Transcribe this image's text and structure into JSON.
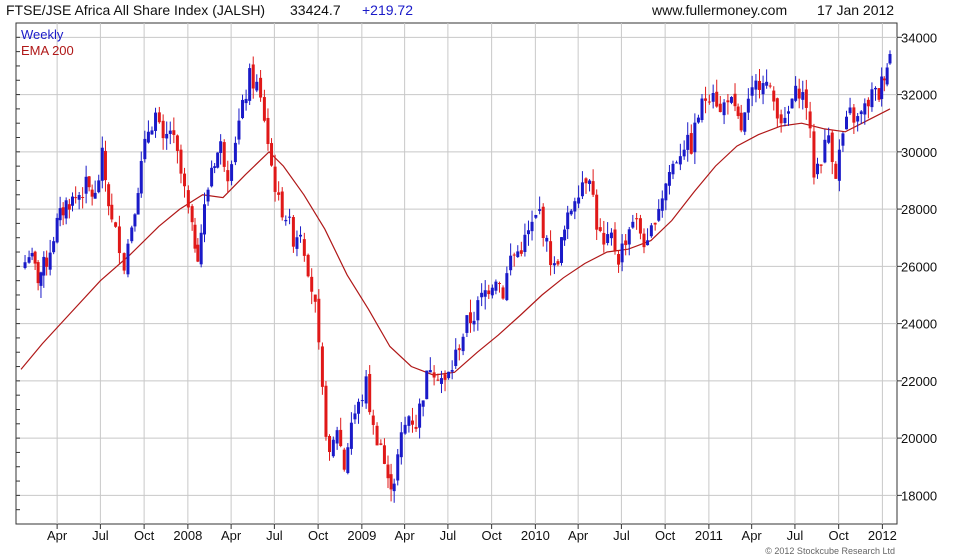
{
  "header": {
    "index_title": "FTSE/JSE Africa All Share Index (JALSH)",
    "last_value": "33424.7",
    "change": "+219.72",
    "website": "www.fullermoney.com",
    "date": "17 Jan 2012"
  },
  "legend": {
    "weekly": "Weekly",
    "ema": "EMA 200"
  },
  "copyright": "© 2012 Stockcube Research Ltd",
  "colors": {
    "up": "#1a1ac8",
    "down": "#e01818",
    "ema": "#b01818",
    "grid": "#c8c8c8",
    "axis": "#333333"
  },
  "chart_data": {
    "type": "line",
    "subtype": "weekly-ohlc-candles",
    "ylim": [
      17000,
      34500
    ],
    "yticks": [
      18000,
      20000,
      22000,
      24000,
      26000,
      28000,
      30000,
      32000,
      34000
    ],
    "x_start": "2007-01-15",
    "x_end": "2012-01-17",
    "xticks": [
      {
        "date": "2007-04-01",
        "label": "Apr"
      },
      {
        "date": "2007-07-01",
        "label": "Jul"
      },
      {
        "date": "2007-10-01",
        "label": "Oct"
      },
      {
        "date": "2008-01-01",
        "label": "2008"
      },
      {
        "date": "2008-04-01",
        "label": "Apr"
      },
      {
        "date": "2008-07-01",
        "label": "Jul"
      },
      {
        "date": "2008-10-01",
        "label": "Oct"
      },
      {
        "date": "2009-01-01",
        "label": "2009"
      },
      {
        "date": "2009-04-01",
        "label": "Apr"
      },
      {
        "date": "2009-07-01",
        "label": "Jul"
      },
      {
        "date": "2009-10-01",
        "label": "Oct"
      },
      {
        "date": "2010-01-01",
        "label": "2010"
      },
      {
        "date": "2010-04-01",
        "label": "Apr"
      },
      {
        "date": "2010-07-01",
        "label": "Jul"
      },
      {
        "date": "2010-10-01",
        "label": "Oct"
      },
      {
        "date": "2011-01-01",
        "label": "2011"
      },
      {
        "date": "2011-04-01",
        "label": "Apr"
      },
      {
        "date": "2011-07-01",
        "label": "Jul"
      },
      {
        "date": "2011-10-01",
        "label": "Oct"
      },
      {
        "date": "2012-01-01",
        "label": "2012"
      }
    ],
    "grid": true,
    "legend_position": "top-left",
    "series": [
      {
        "name": "Weekly",
        "kind": "weekly closes",
        "points": [
          [
            "2007-01-15",
            25800
          ],
          [
            "2007-02-01",
            26500
          ],
          [
            "2007-02-20",
            25600
          ],
          [
            "2007-03-10",
            26200
          ],
          [
            "2007-04-01",
            27500
          ],
          [
            "2007-04-20",
            28200
          ],
          [
            "2007-05-10",
            28400
          ],
          [
            "2007-06-01",
            28800
          ],
          [
            "2007-06-20",
            28400
          ],
          [
            "2007-07-05",
            29800
          ],
          [
            "2007-07-25",
            27500
          ],
          [
            "2007-08-10",
            26800
          ],
          [
            "2007-08-20",
            26100
          ],
          [
            "2007-09-05",
            27500
          ],
          [
            "2007-09-25",
            29500
          ],
          [
            "2007-10-10",
            30800
          ],
          [
            "2007-10-25",
            31300
          ],
          [
            "2007-11-10",
            30200
          ],
          [
            "2007-11-25",
            30800
          ],
          [
            "2007-12-10",
            29800
          ],
          [
            "2007-12-25",
            28600
          ],
          [
            "2008-01-10",
            27200
          ],
          [
            "2008-01-22",
            26500
          ],
          [
            "2008-02-05",
            28000
          ],
          [
            "2008-02-20",
            29500
          ],
          [
            "2008-03-10",
            30200
          ],
          [
            "2008-03-25",
            29300
          ],
          [
            "2008-04-10",
            30500
          ],
          [
            "2008-04-25",
            31500
          ],
          [
            "2008-05-10",
            32600
          ],
          [
            "2008-05-25",
            32300
          ],
          [
            "2008-06-10",
            31200
          ],
          [
            "2008-06-25",
            29500
          ],
          [
            "2008-07-10",
            28200
          ],
          [
            "2008-07-25",
            27800
          ],
          [
            "2008-08-10",
            27000
          ],
          [
            "2008-08-25",
            27300
          ],
          [
            "2008-09-10",
            26000
          ],
          [
            "2008-09-25",
            24500
          ],
          [
            "2008-10-10",
            21500
          ],
          [
            "2008-10-25",
            19200
          ],
          [
            "2008-11-10",
            20400
          ],
          [
            "2008-11-25",
            19000
          ],
          [
            "2008-12-10",
            20600
          ],
          [
            "2008-12-25",
            21100
          ],
          [
            "2009-01-10",
            21900
          ],
          [
            "2009-01-25",
            20300
          ],
          [
            "2009-02-10",
            19800
          ],
          [
            "2009-02-25",
            18400
          ],
          [
            "2009-03-10",
            18600
          ],
          [
            "2009-03-25",
            20000
          ],
          [
            "2009-04-10",
            20800
          ],
          [
            "2009-04-25",
            20500
          ],
          [
            "2009-05-10",
            21600
          ],
          [
            "2009-05-25",
            22600
          ],
          [
            "2009-06-10",
            22300
          ],
          [
            "2009-06-25",
            21900
          ],
          [
            "2009-07-10",
            22500
          ],
          [
            "2009-07-25",
            23300
          ],
          [
            "2009-08-10",
            24000
          ],
          [
            "2009-08-25",
            24300
          ],
          [
            "2009-09-10",
            24900
          ],
          [
            "2009-09-25",
            25300
          ],
          [
            "2009-10-10",
            25700
          ],
          [
            "2009-10-25",
            25100
          ],
          [
            "2009-11-10",
            26300
          ],
          [
            "2009-11-25",
            26500
          ],
          [
            "2009-12-10",
            26900
          ],
          [
            "2009-12-25",
            27400
          ],
          [
            "2010-01-10",
            27900
          ],
          [
            "2010-01-25",
            26700
          ],
          [
            "2010-02-10",
            25900
          ],
          [
            "2010-02-25",
            26800
          ],
          [
            "2010-03-10",
            27600
          ],
          [
            "2010-03-25",
            28500
          ],
          [
            "2010-04-10",
            29000
          ],
          [
            "2010-04-25",
            29300
          ],
          [
            "2010-05-10",
            27500
          ],
          [
            "2010-05-25",
            26600
          ],
          [
            "2010-06-10",
            27000
          ],
          [
            "2010-06-25",
            26300
          ],
          [
            "2010-07-10",
            27000
          ],
          [
            "2010-07-25",
            27700
          ],
          [
            "2010-08-10",
            27200
          ],
          [
            "2010-08-25",
            26600
          ],
          [
            "2010-09-10",
            27800
          ],
          [
            "2010-09-25",
            28500
          ],
          [
            "2010-10-10",
            29300
          ],
          [
            "2010-10-25",
            29800
          ],
          [
            "2010-11-10",
            30300
          ],
          [
            "2010-11-25",
            30200
          ],
          [
            "2010-12-10",
            31300
          ],
          [
            "2010-12-25",
            31900
          ],
          [
            "2011-01-10",
            32300
          ],
          [
            "2011-01-25",
            31300
          ],
          [
            "2011-02-10",
            32000
          ],
          [
            "2011-02-25",
            31300
          ],
          [
            "2011-03-10",
            30800
          ],
          [
            "2011-03-25",
            31600
          ],
          [
            "2011-04-10",
            32300
          ],
          [
            "2011-04-25",
            32700
          ],
          [
            "2011-05-10",
            32000
          ],
          [
            "2011-05-25",
            31500
          ],
          [
            "2011-06-10",
            30900
          ],
          [
            "2011-06-25",
            31800
          ],
          [
            "2011-07-10",
            32200
          ],
          [
            "2011-07-25",
            31700
          ],
          [
            "2011-08-10",
            29300
          ],
          [
            "2011-08-25",
            29800
          ],
          [
            "2011-09-10",
            30600
          ],
          [
            "2011-09-25",
            29300
          ],
          [
            "2011-10-10",
            30600
          ],
          [
            "2011-10-25",
            31300
          ],
          [
            "2011-11-10",
            31100
          ],
          [
            "2011-11-25",
            31500
          ],
          [
            "2011-12-10",
            32000
          ],
          [
            "2011-12-25",
            32000
          ],
          [
            "2012-01-05",
            32800
          ],
          [
            "2012-01-17",
            33400
          ]
        ]
      },
      {
        "name": "EMA 200",
        "kind": "moving average",
        "points": [
          [
            "2007-01-15",
            22400
          ],
          [
            "2007-03-01",
            23300
          ],
          [
            "2007-05-01",
            24400
          ],
          [
            "2007-07-01",
            25500
          ],
          [
            "2007-09-01",
            26400
          ],
          [
            "2007-11-01",
            27400
          ],
          [
            "2007-12-15",
            28000
          ],
          [
            "2008-02-01",
            28500
          ],
          [
            "2008-03-15",
            28400
          ],
          [
            "2008-05-01",
            29200
          ],
          [
            "2008-06-20",
            30000
          ],
          [
            "2008-07-20",
            29500
          ],
          [
            "2008-09-01",
            28500
          ],
          [
            "2008-10-15",
            27300
          ],
          [
            "2008-12-01",
            25700
          ],
          [
            "2009-01-15",
            24500
          ],
          [
            "2009-03-01",
            23200
          ],
          [
            "2009-04-15",
            22500
          ],
          [
            "2009-06-01",
            22200
          ],
          [
            "2009-07-15",
            22300
          ],
          [
            "2009-09-01",
            23000
          ],
          [
            "2009-10-15",
            23600
          ],
          [
            "2009-12-01",
            24300
          ],
          [
            "2010-01-15",
            25000
          ],
          [
            "2010-03-01",
            25600
          ],
          [
            "2010-04-15",
            26100
          ],
          [
            "2010-06-01",
            26500
          ],
          [
            "2010-07-15",
            26600
          ],
          [
            "2010-09-01",
            26900
          ],
          [
            "2010-10-15",
            27600
          ],
          [
            "2010-12-01",
            28600
          ],
          [
            "2011-01-15",
            29500
          ],
          [
            "2011-03-01",
            30200
          ],
          [
            "2011-04-15",
            30600
          ],
          [
            "2011-06-01",
            30900
          ],
          [
            "2011-07-15",
            31000
          ],
          [
            "2011-09-01",
            30800
          ],
          [
            "2011-10-15",
            30700
          ],
          [
            "2011-12-01",
            31100
          ],
          [
            "2012-01-17",
            31500
          ]
        ]
      }
    ]
  }
}
